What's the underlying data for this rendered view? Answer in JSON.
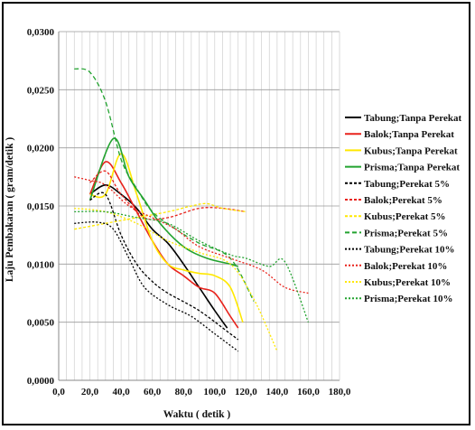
{
  "chart_data": {
    "type": "line",
    "title": "",
    "xlabel": "Waktu ( detik )",
    "ylabel": "Laju Pembakaran ( gram/detik )",
    "xlim": [
      0,
      180
    ],
    "ylim": [
      0,
      0.03
    ],
    "x_ticks": [
      "0,0",
      "20,0",
      "40,0",
      "60,0",
      "80,0",
      "100,0",
      "120,0",
      "140,0",
      "160,0",
      "180,0"
    ],
    "y_ticks": [
      "0,0000",
      "0,0050",
      "0,0100",
      "0,0150",
      "0,0200",
      "0,0250",
      "0,0300"
    ],
    "grid": "vertical",
    "legend_position": "right",
    "series": [
      {
        "name": "Tabung;Tanpa Perekat",
        "color": "#000000",
        "dash": "solid",
        "points": [
          [
            20,
            0.016
          ],
          [
            30,
            0.0168
          ],
          [
            40,
            0.016
          ],
          [
            50,
            0.0148
          ],
          [
            60,
            0.013
          ],
          [
            70,
            0.0118
          ],
          [
            80,
            0.01
          ],
          [
            90,
            0.008
          ],
          [
            100,
            0.006
          ],
          [
            108,
            0.0045
          ]
        ]
      },
      {
        "name": "Balok;Tanpa Perekat",
        "color": "#e8231c",
        "dash": "solid",
        "points": [
          [
            20,
            0.016
          ],
          [
            30,
            0.0188
          ],
          [
            40,
            0.017
          ],
          [
            50,
            0.0145
          ],
          [
            60,
            0.012
          ],
          [
            70,
            0.01
          ],
          [
            80,
            0.009
          ],
          [
            90,
            0.008
          ],
          [
            100,
            0.0075
          ],
          [
            110,
            0.0055
          ],
          [
            115,
            0.0045
          ]
        ]
      },
      {
        "name": "Kubus;Tanpa Perekat",
        "color": "#ffe800",
        "dash": "solid",
        "points": [
          [
            20,
            0.016
          ],
          [
            30,
            0.016
          ],
          [
            40,
            0.0195
          ],
          [
            50,
            0.016
          ],
          [
            60,
            0.012
          ],
          [
            70,
            0.01
          ],
          [
            80,
            0.0095
          ],
          [
            90,
            0.0092
          ],
          [
            100,
            0.009
          ],
          [
            110,
            0.008
          ],
          [
            118,
            0.005
          ]
        ]
      },
      {
        "name": "Prisma;Tanpa Perekat",
        "color": "#22a32f",
        "dash": "solid",
        "points": [
          [
            20,
            0.0155
          ],
          [
            35,
            0.0208
          ],
          [
            45,
            0.0175
          ],
          [
            55,
            0.0155
          ],
          [
            65,
            0.0135
          ],
          [
            80,
            0.0115
          ],
          [
            95,
            0.0105
          ],
          [
            110,
            0.01
          ],
          [
            115,
            0.0098
          ]
        ]
      },
      {
        "name": "Tabung;Perekat 5%",
        "color": "#000000",
        "dash": "3,2",
        "points": [
          [
            20,
            0.0155
          ],
          [
            30,
            0.016
          ],
          [
            40,
            0.0125
          ],
          [
            50,
            0.01
          ],
          [
            60,
            0.0085
          ],
          [
            70,
            0.0075
          ],
          [
            90,
            0.006
          ],
          [
            110,
            0.004
          ],
          [
            115,
            0.0035
          ]
        ]
      },
      {
        "name": "Balok;Perekat 5%",
        "color": "#e8231c",
        "dash": "3,2",
        "points": [
          [
            20,
            0.017
          ],
          [
            30,
            0.018
          ],
          [
            40,
            0.016
          ],
          [
            55,
            0.014
          ],
          [
            70,
            0.014
          ],
          [
            90,
            0.0148
          ],
          [
            105,
            0.0148
          ],
          [
            120,
            0.0145
          ]
        ]
      },
      {
        "name": "Kubus;Perekat 5%",
        "color": "#ffe800",
        "dash": "3,2",
        "points": [
          [
            10,
            0.013
          ],
          [
            30,
            0.0135
          ],
          [
            50,
            0.014
          ],
          [
            70,
            0.0145
          ],
          [
            85,
            0.015
          ],
          [
            95,
            0.0152
          ],
          [
            105,
            0.0148
          ],
          [
            120,
            0.0145
          ]
        ]
      },
      {
        "name": "Prisma;Perekat 5%",
        "color": "#22a32f",
        "dash": "5,3",
        "points": [
          [
            10,
            0.0268
          ],
          [
            20,
            0.0265
          ],
          [
            30,
            0.024
          ],
          [
            40,
            0.019
          ],
          [
            50,
            0.0165
          ],
          [
            60,
            0.0145
          ],
          [
            75,
            0.013
          ],
          [
            90,
            0.0118
          ],
          [
            110,
            0.0105
          ],
          [
            125,
            0.0068
          ]
        ]
      },
      {
        "name": "Tabung;Perekat 10%",
        "color": "#000000",
        "dash": "2,2",
        "points": [
          [
            10,
            0.0135
          ],
          [
            25,
            0.0136
          ],
          [
            35,
            0.013
          ],
          [
            45,
            0.0105
          ],
          [
            55,
            0.008
          ],
          [
            70,
            0.0065
          ],
          [
            85,
            0.0055
          ],
          [
            100,
            0.004
          ],
          [
            115,
            0.0025
          ]
        ]
      },
      {
        "name": "Balok;Perekat 10%",
        "color": "#e8231c",
        "dash": "2,2",
        "points": [
          [
            10,
            0.0175
          ],
          [
            20,
            0.0172
          ],
          [
            30,
            0.0168
          ],
          [
            45,
            0.015
          ],
          [
            60,
            0.014
          ],
          [
            75,
            0.013
          ],
          [
            90,
            0.0115
          ],
          [
            110,
            0.0105
          ],
          [
            130,
            0.0095
          ],
          [
            145,
            0.008
          ],
          [
            160,
            0.0075
          ]
        ]
      },
      {
        "name": "Kubus;Perekat 10%",
        "color": "#ffe800",
        "dash": "2,2",
        "points": [
          [
            10,
            0.0148
          ],
          [
            30,
            0.0145
          ],
          [
            50,
            0.0135
          ],
          [
            70,
            0.012
          ],
          [
            90,
            0.011
          ],
          [
            110,
            0.01
          ],
          [
            125,
            0.007
          ],
          [
            140,
            0.0025
          ]
        ]
      },
      {
        "name": "Prisma;Perekat 10%",
        "color": "#22a32f",
        "dash": "2,2",
        "points": [
          [
            10,
            0.0145
          ],
          [
            30,
            0.0145
          ],
          [
            50,
            0.014
          ],
          [
            70,
            0.0135
          ],
          [
            90,
            0.012
          ],
          [
            110,
            0.0108
          ],
          [
            120,
            0.0105
          ],
          [
            135,
            0.0098
          ],
          [
            145,
            0.0102
          ],
          [
            160,
            0.005
          ]
        ]
      }
    ]
  }
}
